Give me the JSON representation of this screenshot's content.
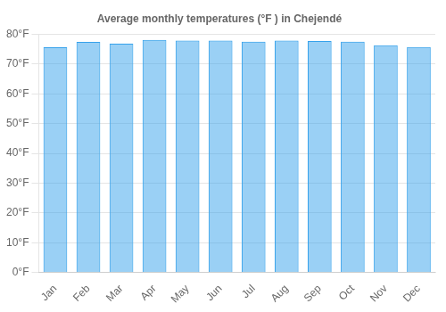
{
  "chart_data": {
    "type": "bar",
    "title": "Average monthly temperatures (°F ) in Chejendé",
    "categories": [
      "Jan",
      "Feb",
      "Mar",
      "Apr",
      "May",
      "Jun",
      "Jul",
      "Aug",
      "Sep",
      "Oct",
      "Nov",
      "Dec"
    ],
    "values": [
      75.6,
      77.4,
      76.8,
      78.1,
      77.9,
      77.9,
      77.5,
      77.9,
      77.7,
      77.5,
      76.3,
      75.7
    ],
    "ylim": [
      0,
      80
    ],
    "yticks": [
      {
        "value": 0,
        "label": "0°F"
      },
      {
        "value": 10,
        "label": "10°F"
      },
      {
        "value": 20,
        "label": "20°F"
      },
      {
        "value": 30,
        "label": "30°F"
      },
      {
        "value": 40,
        "label": "40°F"
      },
      {
        "value": 50,
        "label": "50°F"
      },
      {
        "value": 60,
        "label": "60°F"
      },
      {
        "value": 70,
        "label": "70°F"
      },
      {
        "value": 80,
        "label": "80°F"
      }
    ],
    "grid": true
  }
}
